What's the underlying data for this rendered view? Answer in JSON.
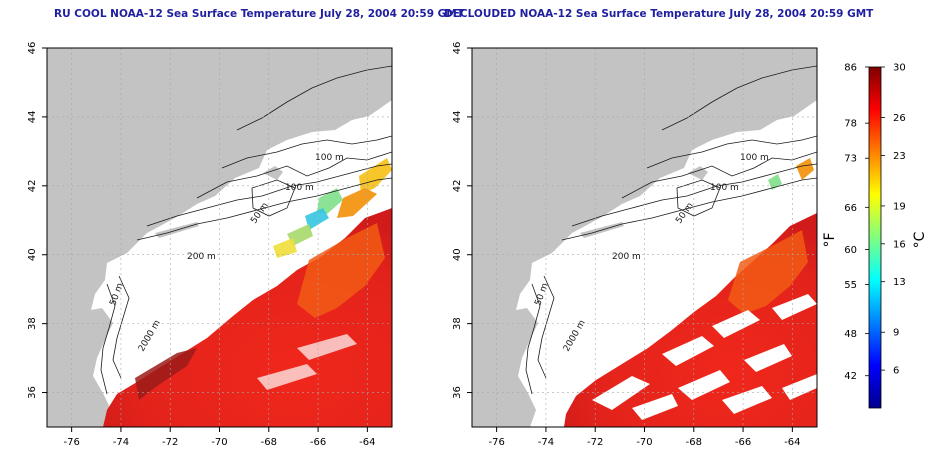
{
  "panels": [
    {
      "title": "RU COOL NOAA-12 Sea Surface Temperature July 28, 2004 20:59 GMT",
      "contour_labels": [
        "100 m",
        "100 m",
        "50 m",
        "200 m",
        "50 m",
        "2000 m"
      ],
      "clouds_removed": false
    },
    {
      "title": "DECLOUDED NOAA-12 Sea Surface Temperature July 28, 2004 20:59 GMT",
      "contour_labels": [
        "100 m",
        "100 m",
        "50 m",
        "200 m",
        "50 m",
        "2000 m"
      ],
      "clouds_removed": true
    }
  ],
  "axes": {
    "x_ticks": [
      "-76",
      "-74",
      "-72",
      "-70",
      "-68",
      "-66",
      "-64"
    ],
    "y_ticks": [
      "46",
      "44",
      "42",
      "40",
      "38",
      "36"
    ],
    "lon_range": [
      -77,
      -63
    ],
    "lat_range": [
      35,
      46
    ]
  },
  "colorbar": {
    "range_c": [
      3,
      30
    ],
    "fahrenheit_ticks": [
      "86",
      "78",
      "73",
      "66",
      "60",
      "55",
      "48",
      "42"
    ],
    "celsius_ticks": [
      "30",
      "26",
      "23",
      "19",
      "16",
      "13",
      "9",
      "6"
    ],
    "label_f": "°F",
    "label_c": "°C",
    "colors": [
      "#00008f",
      "#0000ff",
      "#0080ff",
      "#00ffff",
      "#80ff80",
      "#ffff00",
      "#ff8000",
      "#ff0000",
      "#800000"
    ]
  },
  "colors": {
    "land": "#c3c3c3",
    "water": "#ffffff",
    "warm_sst": "#e8261c",
    "contour": "#1a1a1a",
    "grid": "#a8a8a8",
    "title": "#1f1f9f"
  }
}
